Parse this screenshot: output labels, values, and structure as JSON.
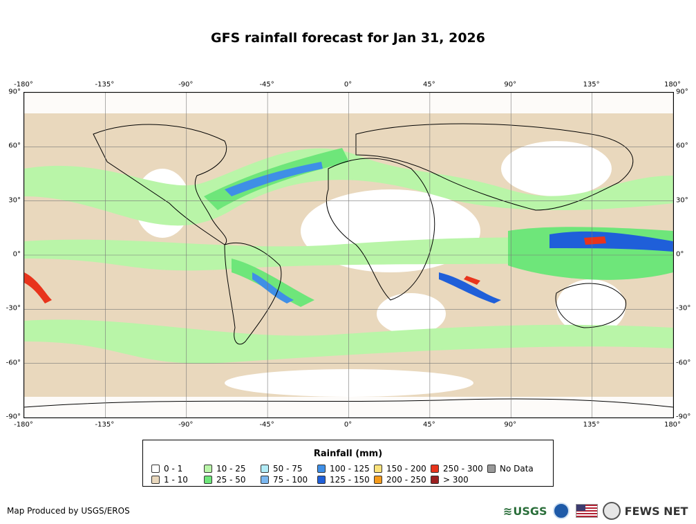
{
  "title": "GFS rainfall forecast for Jan 31, 2026",
  "axes": {
    "x_ticks": [
      "-180°",
      "-135°",
      "-90°",
      "-45°",
      "0°",
      "45°",
      "90°",
      "135°",
      "180°"
    ],
    "y_ticks": [
      "90°",
      "60°",
      "30°",
      "0°",
      "-30°",
      "-60°",
      "-90°"
    ]
  },
  "legend": {
    "title": "Rainfall (mm)",
    "items": [
      {
        "label": "0 - 1",
        "color": "#ffffff"
      },
      {
        "label": "1 - 10",
        "color": "#e9d8bd"
      },
      {
        "label": "10 - 25",
        "color": "#b9f5a8"
      },
      {
        "label": "25 - 50",
        "color": "#6ee67a"
      },
      {
        "label": "50 - 75",
        "color": "#b2ecf7"
      },
      {
        "label": "75 - 100",
        "color": "#7bb7ef"
      },
      {
        "label": "100 - 125",
        "color": "#3f8fe6"
      },
      {
        "label": "125 - 150",
        "color": "#1f5fd9"
      },
      {
        "label": "150 - 200",
        "color": "#fbe27a"
      },
      {
        "label": "200 - 250",
        "color": "#f59b1b"
      },
      {
        "label": "250 - 300",
        "color": "#e8341c"
      },
      {
        "label": "> 300",
        "color": "#9b1f1f"
      },
      {
        "label": "No Data",
        "color": "#999999"
      }
    ]
  },
  "credit": "Map Produced by USGS/EROS",
  "logos": {
    "usgs": "USGS",
    "fews": "FEWS NET"
  }
}
